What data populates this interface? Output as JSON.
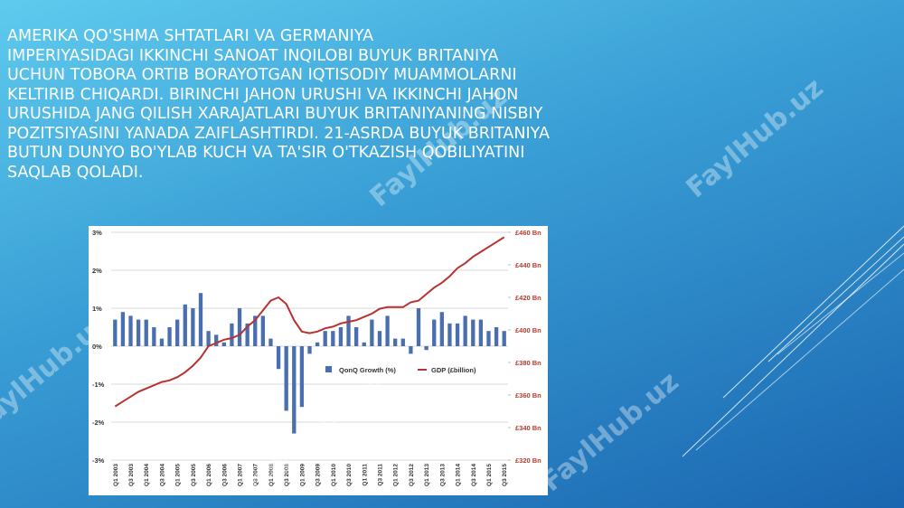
{
  "slide": {
    "lines": [
      "AMERIKA QO'SHMA SHTATLARI VA GERMANIYA",
      "IMPERIYASIDAGI IKKINCHI SANOAT INQILOBI  BUYUK BRITANIYA",
      "UCHUN TOBORA ORTIB BORAYOTGAN IQTISODIY MUAMMOLARNI",
      "KELTIRIB CHIQARDI. BIRINCHI JAHON URUSHI VA IKKINCHI JAHON",
      "URUSHIDA  JANG QILISH XARAJATLARI  BUYUK BRITANIYANING NISBIY",
      "POZITSIYASINI YANADA ZAIFLASHTIRDI. 21-ASRDA BUYUK BRITANIYA",
      "BUTUN DUNYO BO'YLAB KUCH VA TA'SIR O'TKAZISH QOBILIYATINI",
      "SAQLAB QOLADI."
    ],
    "watermark": "FaylHub.uz"
  },
  "chart_data": {
    "type": "bar-line",
    "categories": [
      "Q1 2003",
      null,
      "Q3 2003",
      null,
      "Q1 2004",
      null,
      "Q3 2004",
      null,
      "Q1 2005",
      null,
      "Q3 2005",
      null,
      "Q1 2006",
      null,
      "Q3 2006",
      null,
      "Q1 2007",
      null,
      "Q3 2007",
      null,
      "Q1 2008",
      null,
      "Q3 2008",
      null,
      "Q1 2009",
      null,
      "Q3 2009",
      null,
      "Q1 2010",
      null,
      "Q3 2010",
      null,
      "Q1 2011",
      null,
      "Q3 2011",
      null,
      "Q1 2012",
      null,
      "Q3 2012",
      null,
      "Q1 2013",
      null,
      "Q3 2013",
      null,
      "Q1 2014",
      null,
      "Q3 2014",
      null,
      "Q1 2015",
      null,
      "Q3 2015"
    ],
    "series": [
      {
        "name": "QonQ Growth (%)",
        "color": "#4a6fb0",
        "values": [
          0.7,
          0.9,
          0.8,
          0.7,
          0.7,
          0.5,
          0.2,
          0.5,
          0.7,
          1.1,
          1.0,
          1.4,
          0.4,
          0.3,
          0.1,
          0.6,
          1.0,
          0.6,
          0.8,
          0.8,
          0.2,
          -0.6,
          -1.7,
          -2.3,
          -1.6,
          -0.2,
          0.1,
          0.4,
          0.4,
          0.5,
          0.8,
          0.5,
          0.1,
          0.7,
          0.4,
          0.8,
          0.2,
          0.2,
          -0.2,
          1.0,
          -0.1,
          0.7,
          0.9,
          0.6,
          0.6,
          0.8,
          0.7,
          0.7,
          0.4,
          0.5,
          0.4
        ]
      },
      {
        "name": "GDP (£billion)",
        "color": "#b83232",
        "axis": "y2",
        "values": [
          353,
          356,
          359,
          362,
          364,
          366,
          368,
          369,
          371,
          374,
          378,
          383,
          390,
          392,
          394,
          395,
          397,
          402,
          406,
          412,
          418,
          420,
          416,
          406,
          399,
          398,
          399,
          401,
          402,
          404,
          405,
          406,
          408,
          410,
          413,
          414,
          414,
          414,
          417,
          418,
          422,
          426,
          429,
          433,
          438,
          441,
          445,
          448,
          451,
          454,
          457
        ]
      }
    ],
    "ylim": [
      -3,
      3
    ],
    "yticks": [
      {
        "value": 3,
        "label": "3%"
      },
      {
        "value": 2,
        "label": "2%"
      },
      {
        "value": 1,
        "label": "1%"
      },
      {
        "value": 0,
        "label": "0%"
      },
      {
        "value": -1,
        "label": "-1%"
      },
      {
        "value": -2,
        "label": "-2%"
      },
      {
        "value": -3,
        "label": "-3%"
      }
    ],
    "y2lim": [
      320,
      460
    ],
    "y2ticks": [
      {
        "value": 460,
        "label": "£460 Bn"
      },
      {
        "value": 440,
        "label": "£440 Bn"
      },
      {
        "value": 420,
        "label": "£420 Bn"
      },
      {
        "value": 400,
        "label": "£400 Bn"
      },
      {
        "value": 380,
        "label": "£380 Bn"
      },
      {
        "value": 360,
        "label": "£360 Bn"
      },
      {
        "value": 340,
        "label": "£340 Bn"
      },
      {
        "value": 320,
        "label": "£320 Bn"
      }
    ],
    "grid": true
  }
}
